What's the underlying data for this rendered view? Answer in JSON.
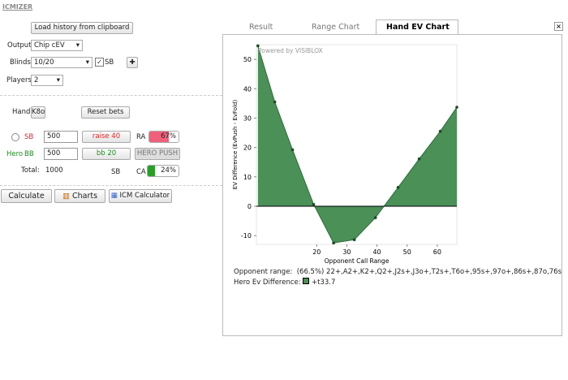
{
  "app_title": "ICMIZER",
  "controls": {
    "load_history": "Load history from clipboard",
    "output_label": "Output",
    "output_value": "Chip cEV",
    "blinds_label": "Blinds",
    "blinds_value": "10/20",
    "sb_checkbox": "SB",
    "players_label": "Players",
    "players_value": "2",
    "hand_label": "Hand",
    "hand_value": "K8o",
    "reset_bets": "Reset bets"
  },
  "seats": [
    {
      "position": "SB",
      "stack": "500",
      "action": "raise 40",
      "range_label": "RA",
      "range_pct": {
        "value": 67,
        "label": "67%"
      }
    },
    {
      "name": "Hero",
      "position": "BB",
      "stack": "500",
      "action": "bb 20",
      "push_button": "HERO PUSH"
    }
  ],
  "summary": {
    "total_label": "Total:",
    "total_value": "1000",
    "sb_label": "SB",
    "ca_label": "CA",
    "ca_pct": {
      "value": 24,
      "label": "24%"
    }
  },
  "buttons": [
    "Calculate",
    "Charts",
    "ICM Calculator"
  ],
  "tabs": [
    "Result",
    "Range Chart",
    "Hand EV Chart"
  ],
  "chart_data": {
    "type": "area",
    "watermark": "Powered by VISIBLOX",
    "x_label": "Opponent Call Range",
    "y_label": "EV Difference (EvPush - EvFold)",
    "x": [
      0.5,
      6.1,
      12,
      19,
      25.6,
      32.5,
      39.5,
      47,
      54,
      61,
      66.5
    ],
    "values": [
      54.6,
      35.5,
      19.2,
      0.6,
      -12.5,
      -11.4,
      -3.9,
      6.4,
      16.1,
      25.5,
      33.7
    ],
    "color": "#4a9057",
    "xlim": [
      0,
      66.5
    ],
    "ylim": [
      -13,
      55
    ],
    "xticks": [
      20,
      30,
      40,
      50,
      60
    ],
    "yticks": [
      -10,
      0,
      10,
      20,
      30,
      40,
      50
    ]
  },
  "info": {
    "opponent_range_label": "Opponent range:",
    "opponent_range": "(66.5%) 22+,A2+,K2+,Q2+,J2s+,J3o+,T2s+,T6o+,95s+,97o+,86s+,87o,76s",
    "hero_ev_label": "Hero Ev Difference:",
    "hero_ev": "+t33.7"
  }
}
